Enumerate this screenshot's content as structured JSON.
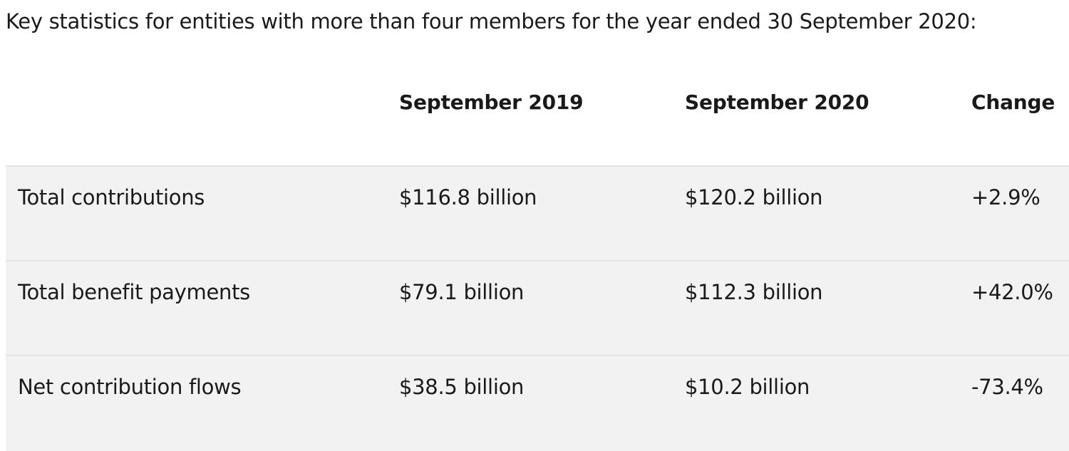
{
  "intro": "Key statistics for entities with more than four members for the year ended 30 September 2020:",
  "table": {
    "headers": [
      "",
      "September 2019",
      "September 2020",
      "Change"
    ],
    "rows": [
      [
        "Total contributions",
        "$116.8 billion",
        "$120.2 billion",
        "+2.9%"
      ],
      [
        "Total benefit payments",
        "$79.1 billion",
        "$112.3 billion",
        "+42.0%"
      ],
      [
        "Net contribution flows",
        "$38.5 billion",
        "$10.2 billion",
        "-73.4%"
      ]
    ]
  }
}
